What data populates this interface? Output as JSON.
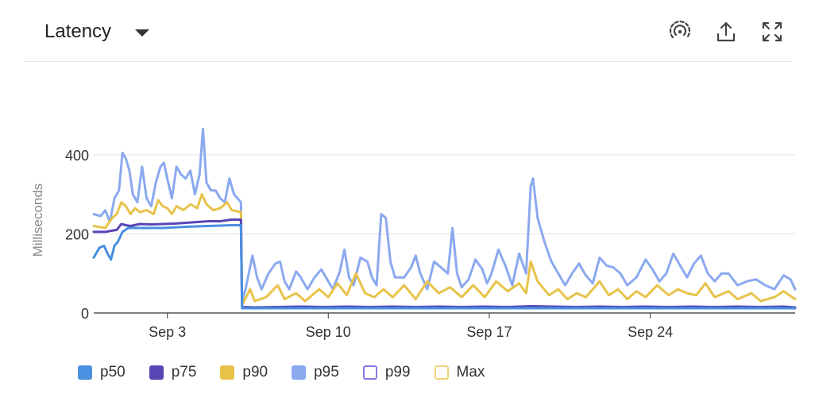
{
  "header": {
    "title": "Latency"
  },
  "chart_data": {
    "type": "line",
    "xlabel": "",
    "ylabel": "Milliseconds",
    "ylim": [
      0,
      470
    ],
    "yticks": [
      0,
      200,
      400
    ],
    "xlim": [
      0,
      30.5
    ],
    "xticks": [
      {
        "label": "Sep 3",
        "x": 3.2
      },
      {
        "label": "Sep 10",
        "x": 10.2
      },
      {
        "label": "Sep 17",
        "x": 17.2
      },
      {
        "label": "Sep 24",
        "x": 24.2
      }
    ],
    "grid": true,
    "legend_position": "bottom-left",
    "series": [
      {
        "name": "p50",
        "color": "#4a8fe0",
        "outline": false,
        "points": [
          [
            0,
            140
          ],
          [
            0.25,
            165
          ],
          [
            0.45,
            170
          ],
          [
            0.6,
            150
          ],
          [
            0.75,
            135
          ],
          [
            0.9,
            170
          ],
          [
            1.05,
            180
          ],
          [
            1.25,
            205
          ],
          [
            1.5,
            215
          ],
          [
            2,
            215
          ],
          [
            3,
            215
          ],
          [
            4,
            218
          ],
          [
            5,
            220
          ],
          [
            6,
            222
          ],
          [
            6.4,
            222
          ],
          [
            6.45,
            12
          ],
          [
            8,
            12
          ],
          [
            10,
            12
          ],
          [
            12,
            12
          ],
          [
            14,
            12
          ],
          [
            16,
            12
          ],
          [
            18,
            12
          ],
          [
            20,
            12
          ],
          [
            22,
            12
          ],
          [
            24,
            12
          ],
          [
            26,
            12
          ],
          [
            28,
            12
          ],
          [
            30.5,
            12
          ]
        ]
      },
      {
        "name": "p75",
        "color": "#5a45b5",
        "outline": false,
        "points": [
          [
            0,
            205
          ],
          [
            0.5,
            205
          ],
          [
            1,
            210
          ],
          [
            1.2,
            225
          ],
          [
            1.4,
            222
          ],
          [
            1.6,
            220
          ],
          [
            2,
            225
          ],
          [
            2.5,
            224
          ],
          [
            3,
            225
          ],
          [
            3.5,
            226
          ],
          [
            4,
            228
          ],
          [
            4.5,
            230
          ],
          [
            5,
            232
          ],
          [
            5.5,
            232
          ],
          [
            6,
            236
          ],
          [
            6.4,
            236
          ],
          [
            6.45,
            15
          ],
          [
            7,
            14
          ],
          [
            8,
            15
          ],
          [
            9,
            16
          ],
          [
            10,
            15
          ],
          [
            11,
            16
          ],
          [
            12,
            15
          ],
          [
            13,
            16
          ],
          [
            14,
            15
          ],
          [
            15,
            16
          ],
          [
            16,
            15
          ],
          [
            17,
            16
          ],
          [
            18,
            15
          ],
          [
            19,
            17
          ],
          [
            20,
            16
          ],
          [
            21,
            15
          ],
          [
            22,
            16
          ],
          [
            23,
            15
          ],
          [
            24,
            16
          ],
          [
            25,
            15
          ],
          [
            26,
            16
          ],
          [
            27,
            15
          ],
          [
            28,
            16
          ],
          [
            29,
            15
          ],
          [
            30,
            16
          ],
          [
            30.5,
            14
          ]
        ]
      },
      {
        "name": "p90",
        "color": "#e8c34a",
        "outline": false,
        "points": [
          [
            0,
            220
          ],
          [
            0.5,
            215
          ],
          [
            0.8,
            240
          ],
          [
            1,
            250
          ],
          [
            1.2,
            280
          ],
          [
            1.4,
            270
          ],
          [
            1.6,
            250
          ],
          [
            1.8,
            265
          ],
          [
            2,
            255
          ],
          [
            2.3,
            260
          ],
          [
            2.6,
            250
          ],
          [
            2.8,
            285
          ],
          [
            3,
            270
          ],
          [
            3.2,
            265
          ],
          [
            3.4,
            250
          ],
          [
            3.6,
            270
          ],
          [
            3.9,
            260
          ],
          [
            4.2,
            275
          ],
          [
            4.5,
            265
          ],
          [
            4.7,
            300
          ],
          [
            4.9,
            275
          ],
          [
            5.2,
            260
          ],
          [
            5.5,
            265
          ],
          [
            5.8,
            280
          ],
          [
            6,
            260
          ],
          [
            6.4,
            255
          ],
          [
            6.45,
            20
          ],
          [
            6.8,
            60
          ],
          [
            7,
            30
          ],
          [
            7.5,
            40
          ],
          [
            8,
            70
          ],
          [
            8.3,
            35
          ],
          [
            8.8,
            50
          ],
          [
            9.2,
            30
          ],
          [
            9.8,
            60
          ],
          [
            10.2,
            40
          ],
          [
            10.6,
            75
          ],
          [
            11,
            45
          ],
          [
            11.4,
            100
          ],
          [
            11.8,
            50
          ],
          [
            12.2,
            40
          ],
          [
            12.6,
            60
          ],
          [
            13,
            40
          ],
          [
            13.5,
            70
          ],
          [
            14,
            35
          ],
          [
            14.5,
            80
          ],
          [
            15,
            50
          ],
          [
            15.5,
            65
          ],
          [
            16,
            40
          ],
          [
            16.5,
            70
          ],
          [
            17,
            40
          ],
          [
            17.5,
            80
          ],
          [
            18,
            55
          ],
          [
            18.5,
            75
          ],
          [
            18.8,
            50
          ],
          [
            19,
            130
          ],
          [
            19.3,
            80
          ],
          [
            19.8,
            45
          ],
          [
            20.2,
            60
          ],
          [
            20.6,
            35
          ],
          [
            21,
            50
          ],
          [
            21.4,
            40
          ],
          [
            22,
            80
          ],
          [
            22.4,
            45
          ],
          [
            22.8,
            60
          ],
          [
            23.2,
            35
          ],
          [
            23.6,
            55
          ],
          [
            24,
            40
          ],
          [
            24.5,
            70
          ],
          [
            25,
            45
          ],
          [
            25.4,
            60
          ],
          [
            25.8,
            50
          ],
          [
            26.2,
            45
          ],
          [
            26.6,
            75
          ],
          [
            27,
            40
          ],
          [
            27.6,
            55
          ],
          [
            28,
            35
          ],
          [
            28.6,
            50
          ],
          [
            29,
            30
          ],
          [
            29.6,
            40
          ],
          [
            30,
            55
          ],
          [
            30.5,
            35
          ]
        ]
      },
      {
        "name": "p95",
        "color": "#8ba9ef",
        "outline": false,
        "points": [
          [
            0,
            250
          ],
          [
            0.3,
            245
          ],
          [
            0.5,
            260
          ],
          [
            0.7,
            230
          ],
          [
            0.9,
            290
          ],
          [
            1.1,
            310
          ],
          [
            1.25,
            405
          ],
          [
            1.4,
            390
          ],
          [
            1.55,
            360
          ],
          [
            1.7,
            300
          ],
          [
            1.9,
            280
          ],
          [
            2.1,
            370
          ],
          [
            2.3,
            290
          ],
          [
            2.5,
            270
          ],
          [
            2.7,
            330
          ],
          [
            2.9,
            370
          ],
          [
            3.05,
            380
          ],
          [
            3.2,
            340
          ],
          [
            3.4,
            290
          ],
          [
            3.6,
            370
          ],
          [
            3.8,
            350
          ],
          [
            4,
            340
          ],
          [
            4.2,
            360
          ],
          [
            4.4,
            300
          ],
          [
            4.6,
            350
          ],
          [
            4.75,
            465
          ],
          [
            4.9,
            330
          ],
          [
            5.1,
            310
          ],
          [
            5.3,
            310
          ],
          [
            5.5,
            290
          ],
          [
            5.7,
            280
          ],
          [
            5.9,
            340
          ],
          [
            6.1,
            300
          ],
          [
            6.4,
            280
          ],
          [
            6.45,
            30
          ],
          [
            6.6,
            60
          ],
          [
            6.9,
            145
          ],
          [
            7.1,
            90
          ],
          [
            7.3,
            60
          ],
          [
            7.6,
            100
          ],
          [
            7.9,
            125
          ],
          [
            8.1,
            130
          ],
          [
            8.3,
            80
          ],
          [
            8.5,
            60
          ],
          [
            8.8,
            105
          ],
          [
            9,
            90
          ],
          [
            9.3,
            60
          ],
          [
            9.6,
            90
          ],
          [
            9.9,
            110
          ],
          [
            10.2,
            80
          ],
          [
            10.4,
            60
          ],
          [
            10.7,
            105
          ],
          [
            10.9,
            160
          ],
          [
            11.1,
            90
          ],
          [
            11.3,
            70
          ],
          [
            11.6,
            140
          ],
          [
            11.9,
            130
          ],
          [
            12.1,
            90
          ],
          [
            12.3,
            70
          ],
          [
            12.5,
            250
          ],
          [
            12.7,
            240
          ],
          [
            12.9,
            130
          ],
          [
            13.1,
            90
          ],
          [
            13.5,
            90
          ],
          [
            13.8,
            115
          ],
          [
            14,
            145
          ],
          [
            14.2,
            100
          ],
          [
            14.5,
            60
          ],
          [
            14.8,
            130
          ],
          [
            15.2,
            110
          ],
          [
            15.4,
            100
          ],
          [
            15.6,
            215
          ],
          [
            15.8,
            100
          ],
          [
            16,
            65
          ],
          [
            16.3,
            85
          ],
          [
            16.6,
            135
          ],
          [
            16.9,
            110
          ],
          [
            17.1,
            75
          ],
          [
            17.3,
            100
          ],
          [
            17.6,
            160
          ],
          [
            17.9,
            120
          ],
          [
            18.2,
            70
          ],
          [
            18.5,
            150
          ],
          [
            18.8,
            100
          ],
          [
            19,
            320
          ],
          [
            19.1,
            340
          ],
          [
            19.3,
            240
          ],
          [
            19.6,
            180
          ],
          [
            19.9,
            130
          ],
          [
            20.2,
            100
          ],
          [
            20.5,
            70
          ],
          [
            20.8,
            100
          ],
          [
            21.1,
            125
          ],
          [
            21.4,
            95
          ],
          [
            21.7,
            75
          ],
          [
            22,
            140
          ],
          [
            22.3,
            120
          ],
          [
            22.6,
            115
          ],
          [
            22.9,
            100
          ],
          [
            23.2,
            70
          ],
          [
            23.6,
            90
          ],
          [
            24,
            135
          ],
          [
            24.3,
            110
          ],
          [
            24.6,
            80
          ],
          [
            24.9,
            100
          ],
          [
            25.2,
            150
          ],
          [
            25.5,
            120
          ],
          [
            25.8,
            90
          ],
          [
            26.1,
            125
          ],
          [
            26.4,
            145
          ],
          [
            26.7,
            100
          ],
          [
            27,
            80
          ],
          [
            27.3,
            100
          ],
          [
            27.6,
            100
          ],
          [
            28,
            70
          ],
          [
            28.4,
            80
          ],
          [
            28.8,
            85
          ],
          [
            29.2,
            70
          ],
          [
            29.6,
            60
          ],
          [
            30,
            95
          ],
          [
            30.3,
            85
          ],
          [
            30.5,
            60
          ]
        ]
      },
      {
        "name": "p99",
        "color": "#8a7ae6",
        "outline": true,
        "points": []
      },
      {
        "name": "Max",
        "color": "#f1d27a",
        "outline": true,
        "points": []
      }
    ]
  }
}
